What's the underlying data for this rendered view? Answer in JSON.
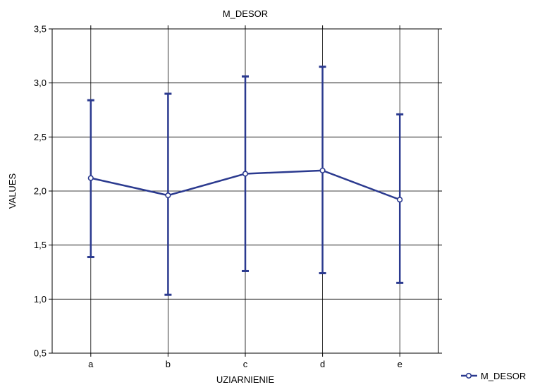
{
  "chart_data": {
    "type": "line",
    "title": "M_DESOR",
    "xlabel": "UZIARNIENIE",
    "ylabel": "VALUES",
    "categories": [
      "a",
      "b",
      "c",
      "d",
      "e"
    ],
    "ylim": [
      0.5,
      3.5
    ],
    "yticks": [
      "0,5",
      "1,0",
      "1,5",
      "2,0",
      "2,5",
      "3,0",
      "3,5"
    ],
    "ytick_values": [
      0.5,
      1.0,
      1.5,
      2.0,
      2.5,
      3.0,
      3.5
    ],
    "grid": true,
    "legend_position": "bottom-right",
    "series": [
      {
        "name": "M_DESOR",
        "color": "#2b3a8f",
        "values": [
          2.12,
          1.96,
          2.16,
          2.19,
          1.92
        ],
        "error_low": [
          1.39,
          1.04,
          1.26,
          1.24,
          1.15
        ],
        "error_high": [
          2.84,
          2.9,
          3.06,
          3.15,
          2.71
        ]
      }
    ]
  }
}
